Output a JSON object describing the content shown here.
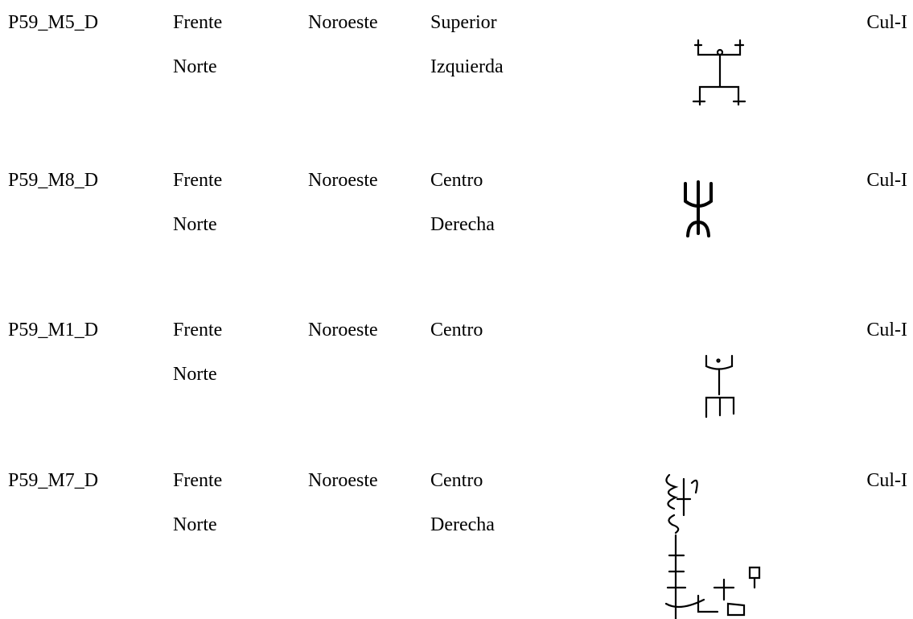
{
  "table": {
    "rows": [
      {
        "id": "P59_M5_D",
        "face": [
          "Frente",
          "Norte"
        ],
        "orientation": "Noroeste",
        "position": [
          "Superior",
          "Izquierda"
        ],
        "culture": "Cul-I"
      },
      {
        "id": "P59_M8_D",
        "face": [
          "Frente",
          "Norte"
        ],
        "orientation": "Noroeste",
        "position": [
          "Centro",
          "Derecha"
        ],
        "culture": "Cul-I"
      },
      {
        "id": "P59_M1_D",
        "face": [
          "Frente",
          "Norte"
        ],
        "orientation": "Noroeste",
        "position": [
          "Centro"
        ],
        "culture": "Cul-I"
      },
      {
        "id": "P59_M7_D",
        "face": [
          "Frente",
          "Norte"
        ],
        "orientation": "Noroeste",
        "position": [
          "Centro",
          "Derecha"
        ],
        "culture": "Cul-I"
      }
    ]
  }
}
